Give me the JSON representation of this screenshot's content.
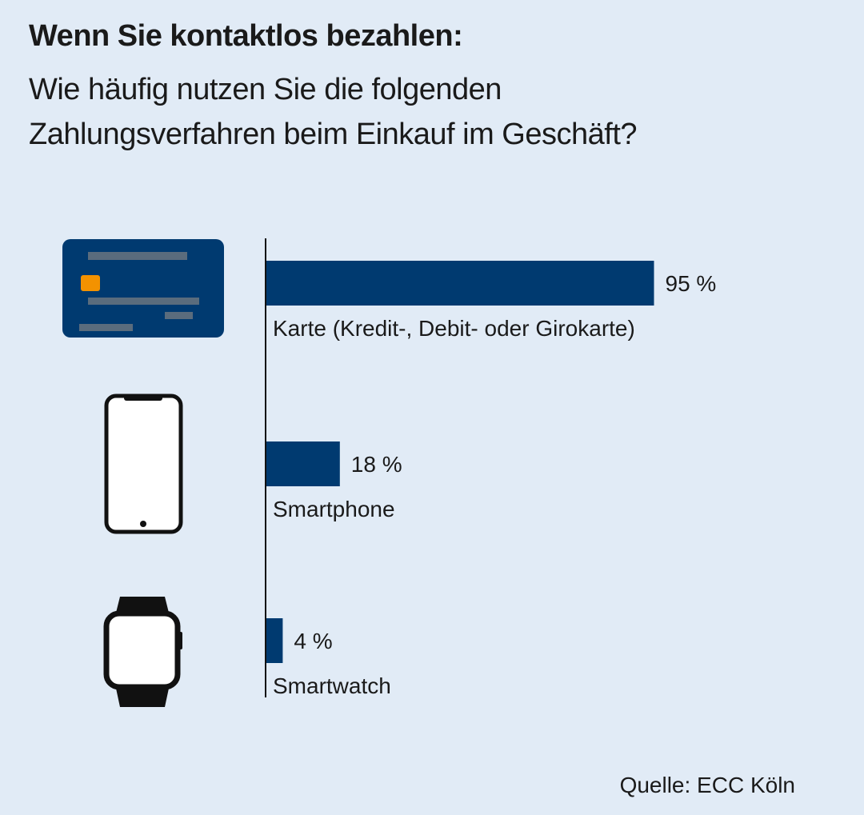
{
  "title": "Wenn Sie kontaktlos bezahlen:",
  "subtitle_line1": "Wie häufig nutzen Sie die folgenden",
  "subtitle_line2": "Zahlungsverfahren beim Einkauf im Geschäft?",
  "source": "Quelle: ECC Köln",
  "colors": {
    "bar": "#003a70",
    "card": "#003a70",
    "card_stripe": "#5a6c7d",
    "card_chip": "#f39200",
    "device": "#111111",
    "background": "#e1ebf6"
  },
  "chart_data": {
    "type": "bar",
    "orientation": "horizontal",
    "categories": [
      "Karte (Kredit-, Debit- oder Girokarte)",
      "Smartphone",
      "Smartwatch"
    ],
    "values": [
      95,
      18,
      4
    ],
    "value_labels": [
      "95 %",
      "18 %",
      "4 %"
    ],
    "icons": [
      "credit-card-icon",
      "smartphone-icon",
      "smartwatch-icon"
    ],
    "unit": "%",
    "xlim": [
      0,
      100
    ],
    "grid": false,
    "legend": "none"
  }
}
